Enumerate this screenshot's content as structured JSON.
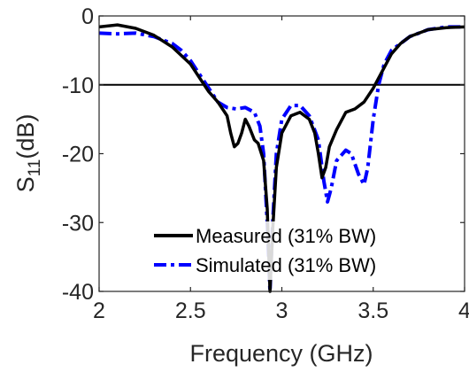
{
  "chart_data": {
    "type": "line",
    "title": "",
    "xlabel": "Frequency (GHz)",
    "ylabel": {
      "base": "S",
      "subscript": "11",
      "suffix": "(dB)"
    },
    "xlim": [
      2,
      4
    ],
    "ylim": [
      -40,
      0
    ],
    "xticks": [
      2,
      2.5,
      3,
      3.5,
      4
    ],
    "xtick_labels": [
      "2",
      "2.5",
      "3",
      "3.5",
      "4"
    ],
    "yticks": [
      0,
      -10,
      -20,
      -30,
      -40
    ],
    "ytick_labels": [
      "0",
      "-10",
      "-20",
      "-30",
      "-40"
    ],
    "grid": false,
    "legend_position": "bottom-center",
    "reference_line": {
      "y": -10,
      "color": "#000000"
    },
    "series": [
      {
        "name": "Measured (31% BW)",
        "color": "#000000",
        "style": "solid",
        "points": [
          [
            2.0,
            -1.6
          ],
          [
            2.1,
            -1.3
          ],
          [
            2.2,
            -1.8
          ],
          [
            2.3,
            -2.8
          ],
          [
            2.4,
            -4.5
          ],
          [
            2.5,
            -7.0
          ],
          [
            2.55,
            -9.0
          ],
          [
            2.6,
            -11.0
          ],
          [
            2.65,
            -12.5
          ],
          [
            2.7,
            -14.5
          ],
          [
            2.72,
            -17.0
          ],
          [
            2.74,
            -19.0
          ],
          [
            2.76,
            -18.5
          ],
          [
            2.78,
            -17.0
          ],
          [
            2.8,
            -15.0
          ],
          [
            2.82,
            -16.0
          ],
          [
            2.85,
            -18.0
          ],
          [
            2.87,
            -18.5
          ],
          [
            2.9,
            -21.0
          ],
          [
            2.92,
            -28.0
          ],
          [
            2.935,
            -40.0
          ],
          [
            2.95,
            -31.0
          ],
          [
            2.97,
            -22.0
          ],
          [
            3.0,
            -17.0
          ],
          [
            3.05,
            -14.5
          ],
          [
            3.1,
            -14.0
          ],
          [
            3.15,
            -15.0
          ],
          [
            3.18,
            -17.0
          ],
          [
            3.2,
            -20.0
          ],
          [
            3.22,
            -23.5
          ],
          [
            3.24,
            -22.0
          ],
          [
            3.26,
            -19.0
          ],
          [
            3.3,
            -16.5
          ],
          [
            3.35,
            -14.0
          ],
          [
            3.4,
            -13.5
          ],
          [
            3.45,
            -12.5
          ],
          [
            3.5,
            -10.5
          ],
          [
            3.55,
            -8.0
          ],
          [
            3.6,
            -5.5
          ],
          [
            3.65,
            -4.0
          ],
          [
            3.7,
            -3.0
          ],
          [
            3.8,
            -2.0
          ],
          [
            3.9,
            -1.7
          ],
          [
            4.0,
            -1.6
          ]
        ]
      },
      {
        "name": "Simulated (31% BW)",
        "color": "#0000ff",
        "style": "dashdot",
        "points": [
          [
            2.0,
            -2.5
          ],
          [
            2.1,
            -2.6
          ],
          [
            2.2,
            -2.5
          ],
          [
            2.3,
            -3.0
          ],
          [
            2.4,
            -4.0
          ],
          [
            2.45,
            -5.0
          ],
          [
            2.5,
            -6.5
          ],
          [
            2.55,
            -8.5
          ],
          [
            2.6,
            -10.5
          ],
          [
            2.65,
            -12.5
          ],
          [
            2.7,
            -13.3
          ],
          [
            2.75,
            -13.5
          ],
          [
            2.8,
            -13.3
          ],
          [
            2.85,
            -14.0
          ],
          [
            2.88,
            -16.0
          ],
          [
            2.9,
            -20.0
          ],
          [
            2.92,
            -30.0
          ],
          [
            2.935,
            -40.0
          ],
          [
            2.95,
            -30.0
          ],
          [
            2.97,
            -20.0
          ],
          [
            3.0,
            -15.0
          ],
          [
            3.05,
            -13.0
          ],
          [
            3.1,
            -13.0
          ],
          [
            3.15,
            -14.5
          ],
          [
            3.2,
            -18.0
          ],
          [
            3.23,
            -24.0
          ],
          [
            3.25,
            -27.0
          ],
          [
            3.27,
            -25.0
          ],
          [
            3.3,
            -21.0
          ],
          [
            3.35,
            -19.5
          ],
          [
            3.38,
            -20.0
          ],
          [
            3.42,
            -23.0
          ],
          [
            3.45,
            -24.5
          ],
          [
            3.47,
            -22.0
          ],
          [
            3.5,
            -15.0
          ],
          [
            3.53,
            -10.0
          ],
          [
            3.56,
            -7.0
          ],
          [
            3.6,
            -5.0
          ],
          [
            3.7,
            -3.0
          ],
          [
            3.8,
            -2.0
          ],
          [
            3.9,
            -1.6
          ],
          [
            4.0,
            -1.6
          ]
        ]
      }
    ]
  }
}
